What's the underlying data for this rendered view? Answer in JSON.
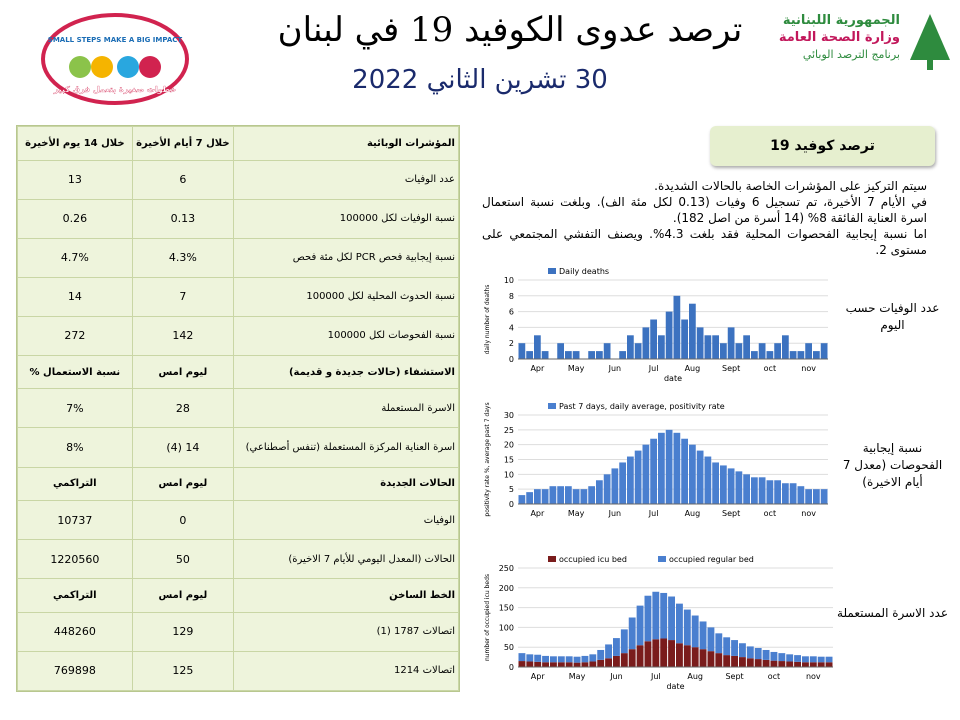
{
  "header": {
    "title": "ترصد عدوى الكوفيد 19 في لبنان",
    "date": "30 تشرين الثاني 2022",
    "logo_right": [
      "الجمهورية اللبنانية",
      "وزارة الصحة العامة",
      "برنامج الترصد الوبائي"
    ],
    "logo_left": [
      "SMALL STEPS MAKE A BIG IMPACT",
      "خطوات صغيرة بتعمل فرق كبير"
    ]
  },
  "table": {
    "rows": [
      [
        "خلال 14 يوم الأخيرة",
        "خلال 7 أيام الأخيرة",
        "المؤشرات الوبائية"
      ],
      [
        "13",
        "6",
        "عدد الوفيات"
      ],
      [
        "0.26",
        "0.13",
        "نسبة الوفيات لكل 100000"
      ],
      [
        "4.7%",
        "4.3%",
        "نسبة إيجابية فحص PCR لكل مئة فحص"
      ],
      [
        "14",
        "7",
        "نسبة الحدوث المحلية لكل 100000"
      ],
      [
        "272",
        "142",
        "نسبة الفحوصات لكل 100000"
      ],
      [
        "% نسبة الاستعمال",
        "ليوم امس",
        "الاستشفاء (حالات جديدة و قديمة)"
      ],
      [
        "7%",
        "28",
        "الاسرة المستعملة"
      ],
      [
        "8%",
        "(4) 14",
        "اسرة العناية المركزة المستعملة (تنفس أصطناعي)"
      ],
      [
        "التراكمي",
        "ليوم امس",
        "الحالات الجديدة"
      ],
      [
        "10737",
        "0",
        "الوفيات"
      ],
      [
        "1220560",
        "50",
        "الحالات (المعدل اليومي للأيام 7 الاخيرة)"
      ],
      [
        "التراكمي",
        "ليوم امس",
        "الخط الساخن"
      ],
      [
        "448260",
        "129",
        "اتصالات 1787 (1)"
      ],
      [
        "769898",
        "125",
        "اتصالات 1214"
      ]
    ],
    "section_rows": [
      0,
      6,
      9,
      12
    ]
  },
  "summary": {
    "title": "ترصد كوفيد 19",
    "lines": [
      "سيتم التركيز على المؤشرات الخاصة بالحالات الشديدة.",
      "في الأيام 7 الأخيرة، تم تسجيل 6 وفيات (0.13 لكل مئة الف). وبلغت نسبة استعمال اسرة العناية الفائقة 8% (14 أسرة من اصل 182).",
      "اما نسبة إيجابية الفحصوات المحلية فقد بلغت 4.3%. ويصنف التفشي المجتمعي على مستوى 2."
    ]
  },
  "figures": [
    {
      "type": "bar",
      "caption": "عدد الوفيات حسب اليوم",
      "ylabel": "daily number of deaths",
      "xlabel": "date",
      "months": [
        "Apr",
        "May",
        "Jun",
        "Jul",
        "Aug",
        "Sept",
        "oct",
        "nov"
      ],
      "ylim": [
        0,
        10
      ],
      "yticks": [
        0,
        2,
        4,
        6,
        8,
        10
      ],
      "series": [
        {
          "name": "Daily deaths",
          "color": "#3c72c0",
          "values": [
            2,
            1,
            3,
            1,
            0,
            2,
            1,
            1,
            0,
            1,
            1,
            2,
            0,
            1,
            3,
            2,
            4,
            5,
            3,
            6,
            8,
            5,
            7,
            4,
            3,
            3,
            2,
            4,
            2,
            3,
            1,
            2,
            1,
            2,
            3,
            1,
            1,
            2,
            1,
            2
          ]
        }
      ]
    },
    {
      "type": "bar",
      "caption": "نسبة إيجابية الفحوصات (معدل 7 أيام الاخيرة)",
      "ylabel": "positivity rate %, average past 7 days",
      "months": [
        "Apr",
        "May",
        "Jun",
        "Jul",
        "Aug",
        "Sept",
        "oct",
        "nov"
      ],
      "ylim": [
        0,
        30
      ],
      "yticks": [
        0,
        5,
        10,
        15,
        20,
        25,
        30
      ],
      "series": [
        {
          "name": "Past 7 days, daily average, positivity rate",
          "color": "#4a7fcf",
          "values": [
            3,
            4,
            5,
            5,
            6,
            6,
            6,
            5,
            5,
            6,
            8,
            10,
            12,
            14,
            16,
            18,
            20,
            22,
            24,
            25,
            24,
            22,
            20,
            18,
            16,
            14,
            13,
            12,
            11,
            10,
            9,
            9,
            8,
            8,
            7,
            7,
            6,
            5,
            5,
            5
          ]
        }
      ]
    },
    {
      "type": "stacked-bar",
      "caption": "عدد الاسرة المستعملة",
      "ylabel": "number of occupied icu beds",
      "xlabel": "date",
      "months": [
        "Apr",
        "May",
        "Jun",
        "Jul",
        "Aug",
        "Sept",
        "oct",
        "nov"
      ],
      "ylim": [
        0,
        250
      ],
      "yticks": [
        0,
        50,
        100,
        150,
        200,
        250
      ],
      "series": [
        {
          "name": "occupied icu bed",
          "color": "#7a1c1c",
          "values": [
            15,
            14,
            13,
            12,
            12,
            12,
            12,
            11,
            12,
            14,
            18,
            22,
            28,
            35,
            45,
            55,
            65,
            70,
            72,
            68,
            60,
            55,
            50,
            45,
            40,
            35,
            30,
            28,
            25,
            22,
            20,
            18,
            16,
            15,
            14,
            13,
            12,
            12,
            12,
            12
          ]
        },
        {
          "name": "occupied regular bed",
          "color": "#4a7fcf",
          "values": [
            20,
            18,
            18,
            16,
            15,
            15,
            15,
            15,
            16,
            18,
            25,
            35,
            45,
            60,
            80,
            100,
            115,
            120,
            115,
            110,
            100,
            90,
            80,
            70,
            60,
            50,
            45,
            40,
            35,
            30,
            28,
            25,
            22,
            20,
            18,
            17,
            15,
            15,
            14,
            14
          ]
        }
      ]
    }
  ]
}
